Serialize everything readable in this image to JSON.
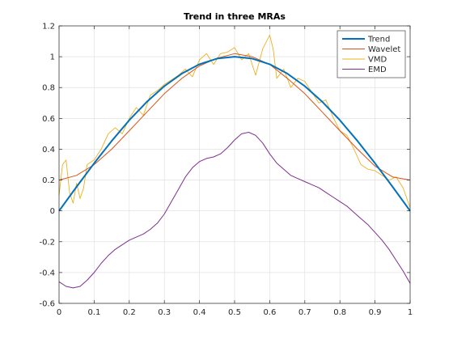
{
  "chart_data": {
    "type": "line",
    "title": "Trend in three MRAs",
    "xlabel": "",
    "ylabel": "",
    "xlim": [
      0,
      1
    ],
    "ylim": [
      -0.6,
      1.2
    ],
    "xticks": [
      "0",
      "0.1",
      "0.2",
      "0.3",
      "0.4",
      "0.5",
      "0.6",
      "0.7",
      "0.8",
      "0.9",
      "1"
    ],
    "yticks": [
      "-0.6",
      "-0.4",
      "-0.2",
      "0",
      "0.2",
      "0.4",
      "0.6",
      "0.8",
      "1",
      "1.2"
    ],
    "grid": true,
    "legend_position": "top-right",
    "colors": {
      "Trend": "#0072BD",
      "Wavelet": "#D95319",
      "VMD": "#EDB120",
      "EMD": "#7E2F8E"
    },
    "series": [
      {
        "name": "Trend",
        "x": [
          0,
          0.05,
          0.1,
          0.15,
          0.2,
          0.25,
          0.3,
          0.35,
          0.4,
          0.45,
          0.5,
          0.55,
          0.6,
          0.65,
          0.7,
          0.75,
          0.8,
          0.85,
          0.9,
          0.95,
          1
        ],
        "y": [
          0,
          0.156,
          0.309,
          0.454,
          0.588,
          0.707,
          0.809,
          0.891,
          0.951,
          0.988,
          1.0,
          0.988,
          0.951,
          0.891,
          0.809,
          0.707,
          0.588,
          0.454,
          0.309,
          0.156,
          0
        ]
      },
      {
        "name": "Wavelet",
        "x": [
          0,
          0.05,
          0.1,
          0.15,
          0.2,
          0.25,
          0.3,
          0.35,
          0.4,
          0.45,
          0.5,
          0.55,
          0.6,
          0.65,
          0.7,
          0.75,
          0.8,
          0.85,
          0.9,
          0.95,
          1
        ],
        "y": [
          0.2,
          0.23,
          0.3,
          0.4,
          0.52,
          0.64,
          0.76,
          0.86,
          0.94,
          0.99,
          1.02,
          1.0,
          0.95,
          0.86,
          0.76,
          0.64,
          0.52,
          0.4,
          0.29,
          0.22,
          0.2
        ]
      },
      {
        "name": "VMD",
        "x": [
          0,
          0.01,
          0.02,
          0.03,
          0.04,
          0.05,
          0.06,
          0.07,
          0.08,
          0.1,
          0.12,
          0.14,
          0.16,
          0.18,
          0.2,
          0.22,
          0.24,
          0.26,
          0.28,
          0.3,
          0.32,
          0.34,
          0.36,
          0.38,
          0.4,
          0.42,
          0.44,
          0.46,
          0.48,
          0.5,
          0.52,
          0.54,
          0.56,
          0.58,
          0.6,
          0.61,
          0.62,
          0.64,
          0.66,
          0.68,
          0.7,
          0.72,
          0.74,
          0.76,
          0.78,
          0.8,
          0.82,
          0.84,
          0.86,
          0.88,
          0.9,
          0.92,
          0.94,
          0.96,
          0.98,
          1.0
        ],
        "y": [
          0.1,
          0.3,
          0.33,
          0.12,
          0.05,
          0.18,
          0.08,
          0.15,
          0.3,
          0.33,
          0.4,
          0.5,
          0.54,
          0.5,
          0.6,
          0.67,
          0.62,
          0.75,
          0.78,
          0.82,
          0.85,
          0.88,
          0.92,
          0.87,
          0.98,
          1.02,
          0.95,
          1.02,
          1.03,
          1.06,
          0.98,
          1.02,
          0.88,
          1.05,
          1.14,
          1.05,
          0.86,
          0.92,
          0.8,
          0.86,
          0.84,
          0.77,
          0.7,
          0.72,
          0.61,
          0.52,
          0.49,
          0.4,
          0.3,
          0.27,
          0.26,
          0.23,
          0.2,
          0.22,
          0.15,
          0.02
        ]
      },
      {
        "name": "EMD",
        "x": [
          0,
          0.02,
          0.04,
          0.06,
          0.08,
          0.1,
          0.12,
          0.14,
          0.16,
          0.18,
          0.2,
          0.22,
          0.24,
          0.26,
          0.28,
          0.3,
          0.32,
          0.34,
          0.36,
          0.38,
          0.4,
          0.42,
          0.44,
          0.46,
          0.48,
          0.5,
          0.52,
          0.54,
          0.56,
          0.58,
          0.6,
          0.62,
          0.64,
          0.66,
          0.68,
          0.7,
          0.72,
          0.74,
          0.76,
          0.78,
          0.8,
          0.82,
          0.84,
          0.86,
          0.88,
          0.9,
          0.92,
          0.94,
          0.96,
          0.98,
          1.0
        ],
        "y": [
          -0.46,
          -0.49,
          -0.5,
          -0.49,
          -0.45,
          -0.4,
          -0.34,
          -0.29,
          -0.25,
          -0.22,
          -0.19,
          -0.17,
          -0.15,
          -0.12,
          -0.08,
          -0.02,
          0.06,
          0.14,
          0.22,
          0.28,
          0.32,
          0.34,
          0.35,
          0.37,
          0.41,
          0.46,
          0.5,
          0.51,
          0.49,
          0.44,
          0.37,
          0.31,
          0.27,
          0.23,
          0.21,
          0.19,
          0.17,
          0.15,
          0.12,
          0.09,
          0.06,
          0.03,
          -0.01,
          -0.05,
          -0.09,
          -0.14,
          -0.19,
          -0.25,
          -0.32,
          -0.39,
          -0.47
        ]
      }
    ]
  }
}
